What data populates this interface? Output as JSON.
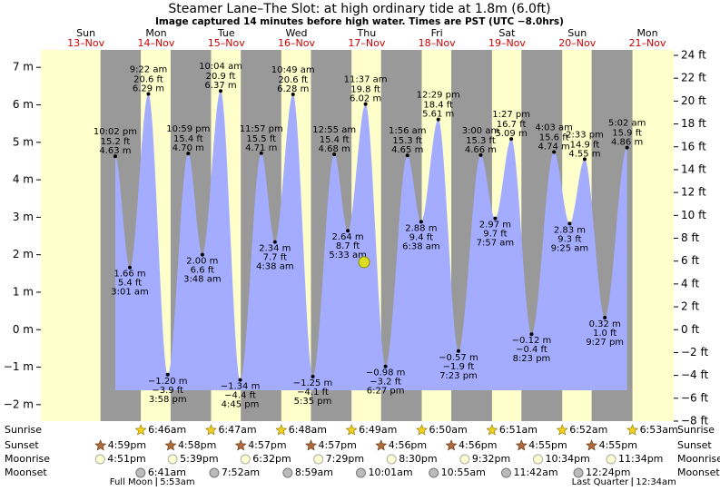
{
  "chart_data": {
    "type": "tide",
    "title": "Steamer Lane–The Slot: at high  ordinary tide at 1.8m (6.0ft)",
    "subtitle": "Image captured 14 minutes before high water. Times are PST (UTC −8.0hrs)",
    "current_tide_m": 1.8,
    "ylim": [
      -2.44,
      7.32
    ],
    "yticks": [
      {
        "value": 7,
        "label": "7 m"
      },
      {
        "value": 6,
        "label": "6 m"
      },
      {
        "value": 5,
        "label": "5 m"
      },
      {
        "value": 4,
        "label": "4 m"
      },
      {
        "value": 3,
        "label": "3 m"
      },
      {
        "value": 2,
        "label": "2 m"
      },
      {
        "value": 1,
        "label": "1 m"
      },
      {
        "value": 0,
        "label": "0 m"
      },
      {
        "value": -1,
        "label": "−1 m"
      },
      {
        "value": -2,
        "label": "−2 m"
      }
    ],
    "y2lim": [
      -8,
      24
    ],
    "y2ticks": [
      {
        "value": 24,
        "label": "24 ft"
      },
      {
        "value": 22,
        "label": "22 ft"
      },
      {
        "value": 20,
        "label": "20 ft"
      },
      {
        "value": 18,
        "label": "18 ft"
      },
      {
        "value": 16,
        "label": "16 ft"
      },
      {
        "value": 14,
        "label": "14 ft"
      },
      {
        "value": 12,
        "label": "12 ft"
      },
      {
        "value": 10,
        "label": "10 ft"
      },
      {
        "value": 8,
        "label": "8 ft"
      },
      {
        "value": 6,
        "label": "6 ft"
      },
      {
        "value": 4,
        "label": "4 ft"
      },
      {
        "value": 2,
        "label": "2 ft"
      },
      {
        "value": 0,
        "label": "0 ft"
      },
      {
        "value": -2,
        "label": "−2 ft"
      },
      {
        "value": -4,
        "label": "−4 ft"
      },
      {
        "value": -6,
        "label": "−6 ft"
      },
      {
        "value": -8,
        "label": "−8 ft"
      }
    ],
    "row_labels": [
      "Sunrise",
      "Sunset",
      "Moonrise",
      "Moonset"
    ],
    "days": [
      {
        "dow": "Sun",
        "date": "13–Nov",
        "sunset": "4:59pm",
        "moonrise": "4:51pm",
        "tides": [
          {
            "time": "10:02 pm",
            "m": 4.63,
            "m_label": "4.63 m",
            "ft": 15.2,
            "ft_label": "15.2 ft"
          }
        ]
      },
      {
        "dow": "Mon",
        "date": "14–Nov",
        "sunrise": "6:46am",
        "sunset": "4:58pm",
        "moonrise": "5:39pm",
        "moonset": "6:41am",
        "moon_phase": {
          "name": "Full Moon",
          "time": "5:53am"
        },
        "tides": [
          {
            "time": "3:01 am",
            "m": 1.66,
            "m_label": "1.66 m",
            "ft": 5.4,
            "ft_label": "5.4 ft"
          },
          {
            "time": "9:22 am",
            "m": 6.29,
            "m_label": "6.29 m",
            "ft": 20.6,
            "ft_label": "20.6 ft"
          },
          {
            "time": "3:58 pm",
            "m": -1.2,
            "m_label": "−1.20 m",
            "ft": -3.9,
            "ft_label": "−3.9 ft"
          },
          {
            "time": "10:59 pm",
            "m": 4.7,
            "m_label": "4.70 m",
            "ft": 15.4,
            "ft_label": "15.4 ft"
          }
        ]
      },
      {
        "dow": "Tue",
        "date": "15–Nov",
        "sunrise": "6:47am",
        "sunset": "4:57pm",
        "moonrise": "6:32pm",
        "moonset": "7:52am",
        "tides": [
          {
            "time": "3:48 am",
            "m": 2.0,
            "m_label": "2.00 m",
            "ft": 6.6,
            "ft_label": "6.6 ft"
          },
          {
            "time": "10:04 am",
            "m": 6.37,
            "m_label": "6.37 m",
            "ft": 20.9,
            "ft_label": "20.9 ft"
          },
          {
            "time": "4:45 pm",
            "m": -1.34,
            "m_label": "−1.34 m",
            "ft": -4.4,
            "ft_label": "−4.4 ft"
          },
          {
            "time": "11:57 pm",
            "m": 4.71,
            "m_label": "4.71 m",
            "ft": 15.5,
            "ft_label": "15.5 ft"
          }
        ]
      },
      {
        "dow": "Wed",
        "date": "16–Nov",
        "sunrise": "6:48am",
        "sunset": "4:57pm",
        "moonrise": "7:29pm",
        "moonset": "8:59am",
        "tides": [
          {
            "time": "4:38 am",
            "m": 2.34,
            "m_label": "2.34 m",
            "ft": 7.7,
            "ft_label": "7.7 ft"
          },
          {
            "time": "10:49 am",
            "m": 6.28,
            "m_label": "6.28 m",
            "ft": 20.6,
            "ft_label": "20.6 ft"
          },
          {
            "time": "5:35 pm",
            "m": -1.25,
            "m_label": "−1.25 m",
            "ft": -4.1,
            "ft_label": "−4.1 ft"
          }
        ]
      },
      {
        "dow": "Thu",
        "date": "17–Nov",
        "sunrise": "6:49am",
        "sunset": "4:56pm",
        "moonrise": "8:30pm",
        "moonset": "10:01am",
        "tides": [
          {
            "time": "12:55 am",
            "m": 4.68,
            "m_label": "4.68 m",
            "ft": 15.4,
            "ft_label": "15.4 ft"
          },
          {
            "time": "5:33 am",
            "m": 2.64,
            "m_label": "2.64 m",
            "ft": 8.7,
            "ft_label": "8.7 ft"
          },
          {
            "time": "11:37 am",
            "m": 6.02,
            "m_label": "6.02 m",
            "ft": 19.8,
            "ft_label": "19.8 ft"
          },
          {
            "time": "6:27 pm",
            "m": -0.98,
            "m_label": "−0.98 m",
            "ft": -3.2,
            "ft_label": "−3.2 ft"
          }
        ]
      },
      {
        "dow": "Fri",
        "date": "18–Nov",
        "sunrise": "6:50am",
        "sunset": "4:56pm",
        "moonrise": "9:32pm",
        "moonset": "10:55am",
        "tides": [
          {
            "time": "1:56 am",
            "m": 4.65,
            "m_label": "4.65 m",
            "ft": 15.3,
            "ft_label": "15.3 ft"
          },
          {
            "time": "6:38 am",
            "m": 2.88,
            "m_label": "2.88 m",
            "ft": 9.4,
            "ft_label": "9.4 ft"
          },
          {
            "time": "12:29 pm",
            "m": 5.61,
            "m_label": "5.61 m",
            "ft": 18.4,
            "ft_label": "18.4 ft"
          },
          {
            "time": "7:23 pm",
            "m": -0.57,
            "m_label": "−0.57 m",
            "ft": -1.9,
            "ft_label": "−1.9 ft"
          }
        ]
      },
      {
        "dow": "Sat",
        "date": "19–Nov",
        "sunrise": "6:51am",
        "sunset": "4:55pm",
        "moonrise": "10:34pm",
        "moonset": "11:42am",
        "tides": [
          {
            "time": "3:00 am",
            "m": 4.66,
            "m_label": "4.66 m",
            "ft": 15.3,
            "ft_label": "15.3 ft"
          },
          {
            "time": "7:57 am",
            "m": 2.97,
            "m_label": "2.97 m",
            "ft": 9.7,
            "ft_label": "9.7 ft"
          },
          {
            "time": "1:27 pm",
            "m": 5.09,
            "m_label": "5.09 m",
            "ft": 16.7,
            "ft_label": "16.7 ft"
          },
          {
            "time": "8:23 pm",
            "m": -0.12,
            "m_label": "−0.12 m",
            "ft": -0.4,
            "ft_label": "−0.4 ft"
          }
        ]
      },
      {
        "dow": "Sun",
        "date": "20–Nov",
        "sunrise": "6:52am",
        "sunset": "4:55pm",
        "moonrise": "11:34pm",
        "moonset": "12:24pm",
        "tides": [
          {
            "time": "4:03 am",
            "m": 4.74,
            "m_label": "4.74 m",
            "ft": 15.6,
            "ft_label": "15.6 ft"
          },
          {
            "time": "9:25 am",
            "m": 2.83,
            "m_label": "2.83 m",
            "ft": 9.3,
            "ft_label": "9.3 ft"
          },
          {
            "time": "2:33 pm",
            "m": 4.55,
            "m_label": "4.55 m",
            "ft": 14.9,
            "ft_label": "14.9 ft"
          },
          {
            "time": "9:27 pm",
            "m": 0.32,
            "m_label": "0.32 m",
            "ft": 1.0,
            "ft_label": "1.0 ft"
          }
        ]
      },
      {
        "dow": "Mon",
        "date": "21–Nov",
        "sunrise": "6:53am",
        "moon_phase": {
          "name": "Last Quarter",
          "time": "12:34am"
        },
        "tides": [
          {
            "time": "5:02 am",
            "m": 4.86,
            "m_label": "4.86 m",
            "ft": 15.9,
            "ft_label": "15.9 ft"
          }
        ]
      }
    ]
  }
}
